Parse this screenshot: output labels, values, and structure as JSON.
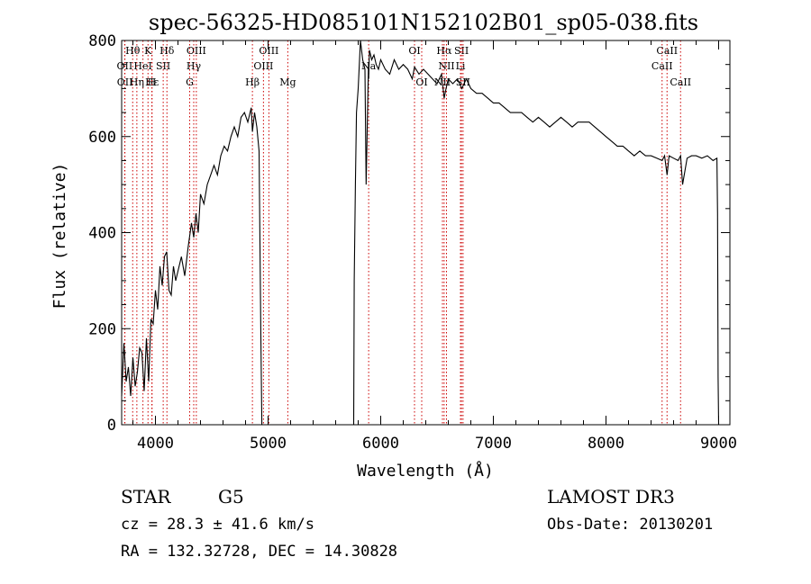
{
  "chart_data": {
    "type": "line",
    "title": "spec-56325-HD085101N152102B01_sp05-038.fits",
    "xlabel": "Wavelength (Å)",
    "ylabel": "Flux (relative)",
    "xlim": [
      3700,
      9100
    ],
    "ylim": [
      0,
      800
    ],
    "xticks": [
      4000,
      5000,
      6000,
      7000,
      8000,
      9000
    ],
    "yticks": [
      0,
      200,
      400,
      600,
      800
    ],
    "grid": false,
    "line_color": "#000000",
    "marker_color": "#cc0000",
    "spectrum": {
      "x": [
        3700,
        3720,
        3740,
        3760,
        3780,
        3800,
        3820,
        3840,
        3860,
        3880,
        3900,
        3920,
        3940,
        3960,
        3980,
        4000,
        4020,
        4040,
        4060,
        4080,
        4100,
        4120,
        4140,
        4160,
        4180,
        4200,
        4230,
        4260,
        4290,
        4320,
        4340,
        4360,
        4380,
        4400,
        4430,
        4460,
        4490,
        4520,
        4550,
        4580,
        4610,
        4640,
        4670,
        4700,
        4730,
        4760,
        4790,
        4820,
        4850,
        4861,
        4880,
        4900,
        4920,
        4935,
        4945,
        4960,
        4980,
        5000,
        5200,
        5400,
        5600,
        5760,
        5765,
        5775,
        5785,
        5800,
        5820,
        5840,
        5860,
        5870,
        5890,
        5893,
        5900,
        5920,
        5940,
        5960,
        5980,
        6000,
        6040,
        6080,
        6120,
        6160,
        6200,
        6240,
        6280,
        6300,
        6340,
        6380,
        6420,
        6460,
        6500,
        6540,
        6563,
        6580,
        6600,
        6640,
        6680,
        6720,
        6760,
        6800,
        6850,
        6900,
        6950,
        7000,
        7050,
        7100,
        7150,
        7200,
        7250,
        7300,
        7350,
        7400,
        7450,
        7500,
        7550,
        7600,
        7650,
        7700,
        7750,
        7800,
        7850,
        7900,
        7950,
        8000,
        8050,
        8100,
        8150,
        8200,
        8250,
        8300,
        8350,
        8400,
        8450,
        8498,
        8520,
        8542,
        8560,
        8600,
        8640,
        8662,
        8680,
        8720,
        8760,
        8800,
        8850,
        8900,
        8950,
        8985,
        8990,
        8995,
        9000
      ],
      "y": [
        60,
        170,
        90,
        120,
        60,
        140,
        80,
        110,
        160,
        150,
        70,
        180,
        90,
        220,
        210,
        280,
        240,
        330,
        290,
        350,
        360,
        280,
        270,
        330,
        300,
        320,
        350,
        310,
        370,
        420,
        390,
        440,
        400,
        480,
        460,
        500,
        520,
        540,
        520,
        560,
        580,
        570,
        600,
        620,
        600,
        640,
        650,
        630,
        660,
        610,
        650,
        620,
        570,
        200,
        0,
        0,
        0,
        0,
        0,
        0,
        0,
        0,
        300,
        500,
        650,
        700,
        820,
        760,
        740,
        500,
        740,
        720,
        780,
        760,
        770,
        750,
        740,
        760,
        740,
        730,
        760,
        740,
        750,
        740,
        720,
        745,
        730,
        740,
        730,
        720,
        710,
        730,
        680,
        700,
        720,
        710,
        720,
        700,
        720,
        700,
        690,
        690,
        680,
        670,
        670,
        660,
        650,
        650,
        650,
        640,
        630,
        640,
        630,
        620,
        630,
        640,
        630,
        620,
        630,
        630,
        630,
        620,
        610,
        600,
        590,
        580,
        580,
        570,
        560,
        570,
        560,
        560,
        555,
        550,
        560,
        520,
        560,
        555,
        550,
        560,
        500,
        555,
        560,
        560,
        555,
        560,
        550,
        555,
        440,
        100,
        0
      ]
    },
    "line_markers": {
      "row1": [
        {
          "label": "Hθ",
          "x": 3798
        },
        {
          "label": "K",
          "x": 3934
        },
        {
          "label": "Hδ",
          "x": 4102
        },
        {
          "label": "OIII",
          "x": 4363
        },
        {
          "label": "OIII",
          "x": 5007
        },
        {
          "label": "OI",
          "x": 6300
        },
        {
          "label": "Hα",
          "x": 6563
        },
        {
          "label": "SII",
          "x": 6717
        },
        {
          "label": "CaII",
          "x": 8542
        }
      ],
      "row2": [
        {
          "label": "OII",
          "x": 3727
        },
        {
          "label": "HeI",
          "x": 3889
        },
        {
          "label": "SII",
          "x": 4069
        },
        {
          "label": "Hγ",
          "x": 4340
        },
        {
          "label": "OIII",
          "x": 4959
        },
        {
          "label": "Na",
          "x": 5893
        },
        {
          "label": "NII",
          "x": 6584
        },
        {
          "label": "Li",
          "x": 6708
        },
        {
          "label": "CaII",
          "x": 8498
        }
      ],
      "row3": [
        {
          "label": "OII",
          "x": 3729
        },
        {
          "label": "Hε",
          "x": 3970
        },
        {
          "label": "Hη",
          "x": 3835
        },
        {
          "label": "H",
          "x": 3968
        },
        {
          "label": "G",
          "x": 4304
        },
        {
          "label": "Hβ",
          "x": 4861
        },
        {
          "label": "Mg",
          "x": 5175
        },
        {
          "label": "OI",
          "x": 6364
        },
        {
          "label": "NII",
          "x": 6548
        },
        {
          "label": "SII",
          "x": 6731
        },
        {
          "label": "CaII",
          "x": 8662
        }
      ]
    }
  },
  "info": {
    "object_class": "STAR",
    "subclass": "G5",
    "survey": "LAMOST DR3",
    "redshift": "cz = 28.3 ± 41.6 km/s",
    "obs_date": "Obs-Date: 20130201",
    "coords": "RA = 132.32728, DEC =  14.30828"
  }
}
